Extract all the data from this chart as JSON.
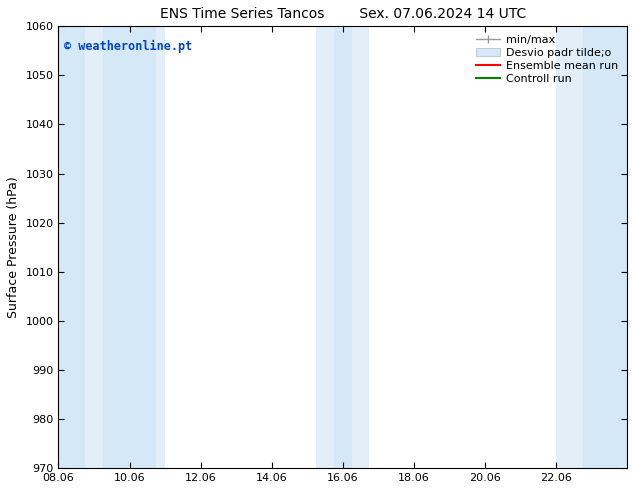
{
  "title_left": "ENS Time Series Tancos",
  "title_right": "Sex. 07.06.2024 14 UTC",
  "ylabel": "Surface Pressure (hPa)",
  "ylim": [
    970,
    1060
  ],
  "yticks": [
    970,
    980,
    990,
    1000,
    1010,
    1020,
    1030,
    1040,
    1050,
    1060
  ],
  "xlim_start": 8.0,
  "xlim_end": 24.0,
  "xtick_labels": [
    "08.06",
    "10.06",
    "12.06",
    "14.06",
    "16.06",
    "18.06",
    "20.06",
    "22.06"
  ],
  "xtick_positions": [
    8.0,
    10.0,
    12.0,
    14.0,
    16.0,
    18.0,
    20.0,
    22.0
  ],
  "shaded_bands": [
    {
      "x_start": 8.0,
      "x_end": 8.75,
      "color": "#d4e8f8"
    },
    {
      "x_start": 8.75,
      "x_end": 9.25,
      "color": "#e2eff9"
    },
    {
      "x_start": 9.25,
      "x_end": 10.75,
      "color": "#d4e8f8"
    },
    {
      "x_start": 10.75,
      "x_end": 11.0,
      "color": "#e2eff9"
    },
    {
      "x_start": 15.25,
      "x_end": 15.75,
      "color": "#e2eff9"
    },
    {
      "x_start": 15.75,
      "x_end": 16.25,
      "color": "#d4e8f8"
    },
    {
      "x_start": 16.25,
      "x_end": 16.75,
      "color": "#e2eff9"
    },
    {
      "x_start": 22.0,
      "x_end": 22.75,
      "color": "#e2eff9"
    },
    {
      "x_start": 22.75,
      "x_end": 24.0,
      "color": "#d4e8f8"
    }
  ],
  "watermark_text": "© weatheronline.pt",
  "watermark_color": "#0044cc",
  "background_color": "#ffffff",
  "title_fontsize": 10,
  "axis_label_fontsize": 9,
  "tick_fontsize": 8,
  "legend_fontsize": 8
}
